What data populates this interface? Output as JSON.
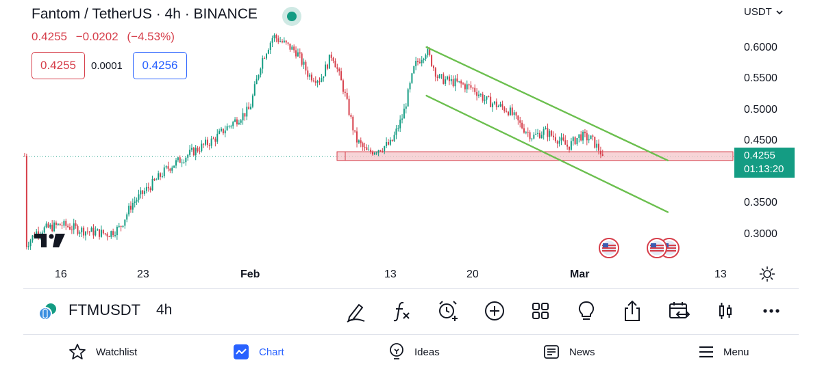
{
  "header": {
    "title": "Fantom / TetherUS · 4h · BINANCE",
    "last_price": "0.4255",
    "change": "−0.0202",
    "change_pct": "(−4.53%)",
    "sell_price": "0.4255",
    "spread": "0.0001",
    "buy_price": "0.4256",
    "currency": "USDT"
  },
  "colors": {
    "up": "#149c83",
    "down": "#d63e4a",
    "accent": "#2962ff",
    "channel": "#6bbf4e",
    "zone": "#f4c5c9"
  },
  "y_axis": {
    "labels": [
      "0.6000",
      "0.5500",
      "0.5000",
      "0.4500",
      "0.3500",
      "0.3000"
    ]
  },
  "price_tag": {
    "price": "0.4255",
    "countdown": "01:13:20"
  },
  "x_axis": {
    "labels": [
      "16",
      "23",
      "Feb",
      "13",
      "20",
      "Mar",
      "13"
    ]
  },
  "chart_data": {
    "type": "candlestick",
    "symbol": "FTMUSDT",
    "interval": "4h",
    "ylim": [
      0.265,
      0.635
    ],
    "y_ticks": [
      0.3,
      0.35,
      0.45,
      0.5,
      0.55,
      0.6
    ],
    "x_ticks": [
      "16",
      "23",
      "Feb",
      "13",
      "20",
      "Mar",
      "13"
    ],
    "approx_close_path": [
      [
        "Jan 13",
        0.281
      ],
      [
        "Jan 14",
        0.305
      ],
      [
        "Jan 16",
        0.315
      ],
      [
        "Jan 18",
        0.305
      ],
      [
        "Jan 20",
        0.3
      ],
      [
        "Jan 21",
        0.31
      ],
      [
        "Jan 22",
        0.348
      ],
      [
        "Jan 24",
        0.385
      ],
      [
        "Jan 25",
        0.405
      ],
      [
        "Jan 27",
        0.43
      ],
      [
        "Jan 29",
        0.452
      ],
      [
        "Jan 30",
        0.47
      ],
      [
        "Feb 1",
        0.5
      ],
      [
        "Feb 2",
        0.578
      ],
      [
        "Feb 3",
        0.618
      ],
      [
        "Feb 5",
        0.592
      ],
      [
        "Feb 6",
        0.555
      ],
      [
        "Feb 7",
        0.548
      ],
      [
        "Feb 8",
        0.59
      ],
      [
        "Feb 9",
        0.53
      ],
      [
        "Feb 10",
        0.452
      ],
      [
        "Feb 11",
        0.43
      ],
      [
        "Feb 13",
        0.445
      ],
      [
        "Feb 14",
        0.49
      ],
      [
        "Feb 15",
        0.57
      ],
      [
        "Feb 16",
        0.595
      ],
      [
        "Feb 17",
        0.55
      ],
      [
        "Feb 19",
        0.54
      ],
      [
        "Feb 20",
        0.533
      ],
      [
        "Feb 21",
        0.515
      ],
      [
        "Feb 23",
        0.498
      ],
      [
        "Feb 24",
        0.474
      ],
      [
        "Feb 25",
        0.456
      ],
      [
        "Feb 26",
        0.465
      ],
      [
        "Feb 27",
        0.454
      ],
      [
        "Feb 28",
        0.44
      ],
      [
        "Mar 1",
        0.458
      ],
      [
        "Mar 2",
        0.452
      ],
      [
        "Mar 3",
        0.4255
      ]
    ],
    "last_price": 0.4255,
    "support_zone": [
      0.418,
      0.432
    ],
    "descending_channel": {
      "upper": [
        [
          "Feb 16",
          0.6
        ],
        [
          "Mar 8",
          0.418
        ]
      ],
      "lower": [
        [
          "Feb 16",
          0.522
        ],
        [
          "Mar 8",
          0.335
        ]
      ]
    },
    "events": [
      "US economic event",
      "US economic event",
      "US economic event"
    ]
  },
  "toolbar": {
    "symbol": "FTMUSDT",
    "interval": "4h",
    "tools": [
      "drawing-tool-icon",
      "indicators-icon",
      "alert-add-icon",
      "add-compare-icon",
      "layouts-icon",
      "ideas-bulb-icon",
      "share-icon",
      "replay-icon",
      "chart-type-candles-icon",
      "more-icon"
    ]
  },
  "bottom_nav": {
    "watchlist": "Watchlist",
    "chart": "Chart",
    "ideas": "Ideas",
    "news": "News",
    "menu": "Menu"
  }
}
